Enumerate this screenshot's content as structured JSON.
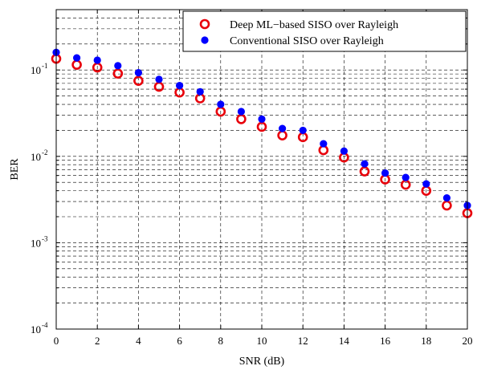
{
  "chart_data": {
    "type": "scatter",
    "xlabel": "SNR (dB)",
    "ylabel": "BER",
    "xlim": [
      0,
      20
    ],
    "ylim": [
      0.0001,
      0.5
    ],
    "yscale": "log",
    "grid": true,
    "legend_position": "top-right",
    "x_ticks": [
      0,
      2,
      4,
      6,
      8,
      10,
      12,
      14,
      16,
      18,
      20
    ],
    "y_ticks": [
      {
        "base": "10",
        "exp": "-4",
        "value": 0.0001
      },
      {
        "base": "10",
        "exp": "-3",
        "value": 0.001
      },
      {
        "base": "10",
        "exp": "-2",
        "value": 0.01
      },
      {
        "base": "10",
        "exp": "-1",
        "value": 0.1
      }
    ],
    "series": [
      {
        "name": "Deep ML−based SISO over Rayleigh",
        "marker": "circle-open",
        "color": "#e8000b",
        "x": [
          0,
          1,
          2,
          3,
          4,
          5,
          6,
          7,
          8,
          9,
          10,
          11,
          12,
          13,
          14,
          15,
          16,
          17,
          18,
          19,
          20
        ],
        "y": [
          0.135,
          0.115,
          0.107,
          0.091,
          0.075,
          0.064,
          0.055,
          0.047,
          0.033,
          0.027,
          0.022,
          0.0175,
          0.0167,
          0.0118,
          0.0097,
          0.0067,
          0.0054,
          0.0047,
          0.004,
          0.0027,
          0.0022
        ]
      },
      {
        "name": "Conventional SISO over Rayleigh",
        "marker": "circle-filled",
        "color": "#0000ff",
        "x": [
          0,
          1,
          2,
          3,
          4,
          5,
          6,
          7,
          8,
          9,
          10,
          11,
          12,
          13,
          14,
          15,
          16,
          17,
          18,
          19,
          20
        ],
        "y": [
          0.16,
          0.138,
          0.13,
          0.112,
          0.093,
          0.078,
          0.066,
          0.056,
          0.04,
          0.033,
          0.027,
          0.021,
          0.02,
          0.014,
          0.0115,
          0.0082,
          0.0064,
          0.0057,
          0.0048,
          0.0033,
          0.0027
        ]
      }
    ]
  }
}
